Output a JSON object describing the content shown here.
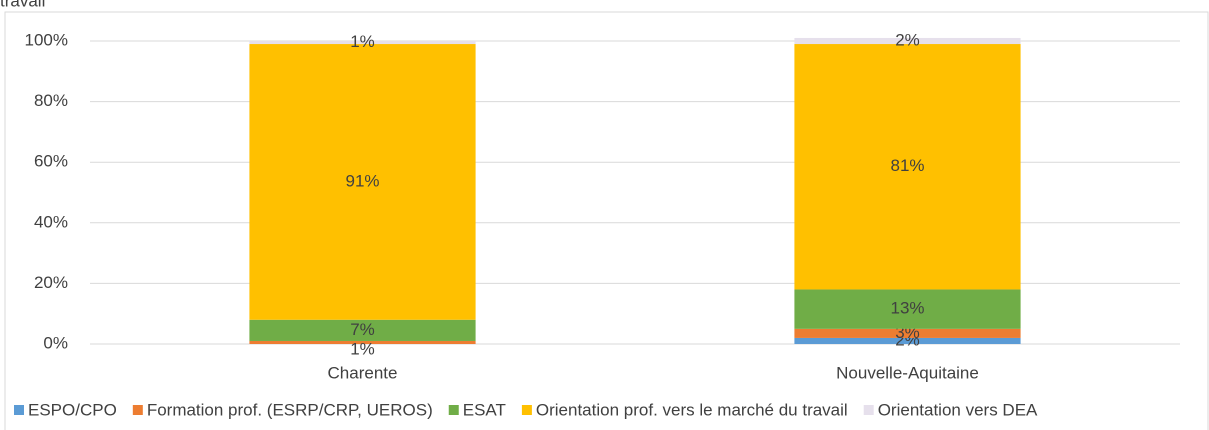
{
  "chart_data": {
    "type": "stacked_bar",
    "title": "travail",
    "categories": [
      "Charente",
      "Nouvelle-Aquitaine"
    ],
    "series": [
      {
        "name": "ESPO/CPO",
        "color": "#5b9bd5",
        "values": [
          0,
          2
        ],
        "value_labels": [
          null,
          "2%"
        ]
      },
      {
        "name": "Formation prof. (ESRP/CRP, UEROS)",
        "color": "#ed7d31",
        "values": [
          1,
          3
        ],
        "value_labels": [
          "1%",
          "3%"
        ]
      },
      {
        "name": "ESAT",
        "color": "#70ad47",
        "values": [
          7,
          13
        ],
        "value_labels": [
          "7%",
          "13%"
        ]
      },
      {
        "name": "Orientation prof. vers le marché du travail",
        "color": "#ffc000",
        "values": [
          91,
          81
        ],
        "value_labels": [
          "91%",
          "81%"
        ]
      },
      {
        "name": "Orientation vers DEA",
        "color": "#e6e0ec",
        "values": [
          1,
          2
        ],
        "value_labels": [
          "1%",
          "2%"
        ]
      }
    ],
    "ylim": [
      0,
      100
    ],
    "yticks": [
      {
        "value": 0,
        "label": "0%"
      },
      {
        "value": 20,
        "label": "20%"
      },
      {
        "value": 40,
        "label": "40%"
      },
      {
        "value": 60,
        "label": "60%"
      },
      {
        "value": 80,
        "label": "80%"
      },
      {
        "value": 100,
        "label": "100%"
      }
    ],
    "grid": true,
    "legend": "bottom"
  }
}
